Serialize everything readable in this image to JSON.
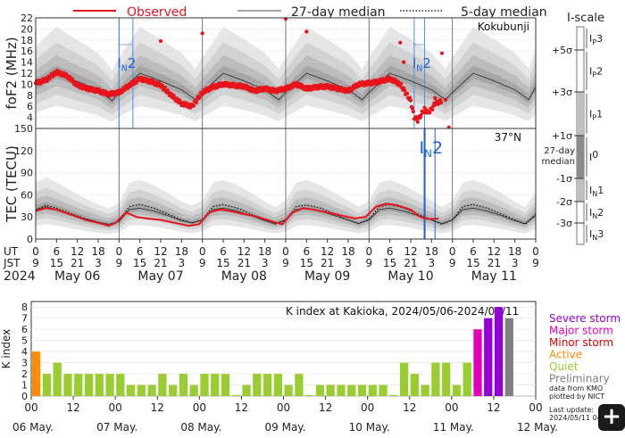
{
  "legend": {
    "observed": "Observed",
    "median27": "27-day median",
    "median5": "5-day median"
  },
  "iscale": {
    "title": "I-scale",
    "sigma_labels": [
      "+5σ",
      "+3σ",
      "+1σ",
      "-1σ",
      "-2σ",
      "-3σ"
    ],
    "median_label_1": "27-day",
    "median_label_2": "median",
    "bands": [
      {
        "main": "I",
        "sub": "P",
        "num": "3"
      },
      {
        "main": "I",
        "sub": "P",
        "num": "2"
      },
      {
        "main": "I",
        "sub": "P",
        "num": "1"
      },
      {
        "main": "I",
        "sub": "",
        "num": "0"
      },
      {
        "main": "I",
        "sub": "N",
        "num": "1"
      },
      {
        "main": "I",
        "sub": "N",
        "num": "2"
      },
      {
        "main": "I",
        "sub": "N",
        "num": "3"
      }
    ]
  },
  "expand_icon": "+",
  "colors": {
    "observed": "#e8141b",
    "median": "#333333",
    "event": "#1f5fd6",
    "severe": "#9400d3",
    "major": "#e600b4",
    "minor": "#e60000",
    "active": "#ff8c00",
    "quiet": "#9acd32",
    "preliminary": "#808080"
  },
  "chart_data": [
    {
      "type": "line",
      "name": "foF2",
      "ylabel": "foF2 (MHz)",
      "yticks": [
        4,
        6,
        8,
        10,
        12,
        14,
        16,
        18,
        20,
        22
      ],
      "ylim": [
        2,
        22
      ],
      "x_unit": "hours from 2024-05-06 00UT",
      "xlim": [
        0,
        144
      ],
      "station": "Kokubunji",
      "event_label": {
        "main": "I",
        "sub": "N",
        "num": "2"
      },
      "events": [
        {
          "x": 24,
          "x2": 28
        },
        {
          "x": 109,
          "x2": 112
        }
      ],
      "observed": [
        [
          0,
          10.2
        ],
        [
          3,
          10.8
        ],
        [
          6,
          12.2
        ],
        [
          9,
          11.5
        ],
        [
          12,
          9.8
        ],
        [
          15,
          9.2
        ],
        [
          18,
          8.8
        ],
        [
          21,
          8.2
        ],
        [
          24,
          8.5
        ],
        [
          27,
          9.8
        ],
        [
          30,
          11.0
        ],
        [
          33,
          10.5
        ],
        [
          36,
          9.8
        ],
        [
          39,
          8.0
        ],
        [
          42,
          6.5
        ],
        [
          45,
          6.0
        ],
        [
          48,
          8.5
        ],
        [
          51,
          9.5
        ],
        [
          54,
          10.0
        ],
        [
          57,
          9.8
        ],
        [
          60,
          9.6
        ],
        [
          63,
          8.8
        ],
        [
          66,
          9.2
        ],
        [
          69,
          8.8
        ],
        [
          72,
          9.2
        ],
        [
          75,
          10.0
        ],
        [
          78,
          9.2
        ],
        [
          81,
          9.5
        ],
        [
          84,
          9.6
        ],
        [
          87,
          9.2
        ],
        [
          90,
          8.8
        ],
        [
          93,
          10.0
        ],
        [
          96,
          10.2
        ],
        [
          99,
          10.5
        ],
        [
          102,
          11.0
        ],
        [
          105,
          10.0
        ],
        [
          108,
          7.0
        ],
        [
          109,
          4.0
        ],
        [
          110,
          3.5
        ],
        [
          111,
          4.5
        ],
        [
          112,
          5.5
        ],
        [
          113,
          4.8
        ],
        [
          114,
          5.5
        ],
        [
          115,
          6.5
        ],
        [
          117,
          7.0
        ]
      ],
      "observed_outliers": [
        [
          36,
          17.8
        ],
        [
          48,
          19.2
        ],
        [
          72,
          21.8
        ],
        [
          78,
          19.5
        ],
        [
          105,
          17.5
        ],
        [
          106,
          14.0
        ],
        [
          117,
          15.6
        ],
        [
          115,
          7.5
        ],
        [
          116,
          6.6
        ],
        [
          118,
          7.2
        ],
        [
          119,
          2.2
        ]
      ],
      "median27": [
        [
          0,
          9.8
        ],
        [
          6,
          12.0
        ],
        [
          12,
          10.5
        ],
        [
          18,
          9.0
        ],
        [
          22,
          7.0
        ],
        [
          24,
          8.5
        ],
        [
          30,
          12.0
        ],
        [
          36,
          10.6
        ],
        [
          42,
          9.0
        ],
        [
          46,
          7.2
        ],
        [
          48,
          8.5
        ],
        [
          54,
          12.0
        ],
        [
          60,
          10.6
        ],
        [
          66,
          9.0
        ],
        [
          70,
          7.2
        ],
        [
          72,
          8.5
        ],
        [
          78,
          12.0
        ],
        [
          84,
          10.6
        ],
        [
          90,
          9.0
        ],
        [
          94,
          7.2
        ],
        [
          96,
          8.5
        ],
        [
          102,
          12.0
        ],
        [
          108,
          10.6
        ],
        [
          114,
          9.0
        ],
        [
          118,
          7.2
        ],
        [
          120,
          8.5
        ],
        [
          126,
          12.0
        ],
        [
          132,
          10.6
        ],
        [
          138,
          9.0
        ],
        [
          142,
          7.2
        ],
        [
          144,
          9.5
        ]
      ]
    },
    {
      "type": "line",
      "name": "TEC",
      "ylabel": "TEC (TECU)",
      "yticks": [
        0,
        30,
        60,
        90,
        120,
        150
      ],
      "ylim": [
        0,
        150
      ],
      "xlim": [
        0,
        144
      ],
      "station": "37°N",
      "event_label": {
        "main": "I",
        "sub": "N",
        "num": "2"
      },
      "events": [
        {
          "x": 112
        },
        {
          "x": 115
        }
      ],
      "observed": [
        [
          0,
          38
        ],
        [
          3,
          42
        ],
        [
          6,
          40
        ],
        [
          9,
          35
        ],
        [
          12,
          30
        ],
        [
          15,
          25
        ],
        [
          18,
          22
        ],
        [
          21,
          18
        ],
        [
          23,
          22
        ],
        [
          26,
          36
        ],
        [
          29,
          30
        ],
        [
          32,
          28
        ],
        [
          36,
          26
        ],
        [
          40,
          22
        ],
        [
          44,
          18
        ],
        [
          47,
          20
        ],
        [
          50,
          36
        ],
        [
          53,
          40
        ],
        [
          56,
          38
        ],
        [
          60,
          34
        ],
        [
          64,
          30
        ],
        [
          68,
          24
        ],
        [
          71,
          20
        ],
        [
          74,
          36
        ],
        [
          77,
          42
        ],
        [
          80,
          40
        ],
        [
          84,
          36
        ],
        [
          88,
          32
        ],
        [
          92,
          28
        ],
        [
          95,
          30
        ],
        [
          98,
          44
        ],
        [
          101,
          48
        ],
        [
          104,
          46
        ],
        [
          108,
          40
        ],
        [
          110,
          32
        ],
        [
          112,
          28
        ],
        [
          114,
          27
        ],
        [
          116,
          28
        ]
      ],
      "median27": [
        [
          0,
          40
        ],
        [
          3,
          44
        ],
        [
          6,
          40
        ],
        [
          10,
          34
        ],
        [
          14,
          28
        ],
        [
          18,
          23
        ],
        [
          21,
          20
        ],
        [
          24,
          24
        ],
        [
          27,
          40
        ],
        [
          30,
          42
        ],
        [
          34,
          38
        ],
        [
          38,
          32
        ],
        [
          42,
          25
        ],
        [
          45,
          22
        ],
        [
          48,
          26
        ],
        [
          51,
          40
        ],
        [
          54,
          42
        ],
        [
          58,
          38
        ],
        [
          62,
          32
        ],
        [
          66,
          25
        ],
        [
          69,
          21
        ],
        [
          72,
          26
        ],
        [
          75,
          40
        ],
        [
          78,
          42
        ],
        [
          82,
          38
        ],
        [
          86,
          32
        ],
        [
          90,
          26
        ],
        [
          93,
          21
        ],
        [
          96,
          26
        ],
        [
          99,
          40
        ],
        [
          102,
          42
        ],
        [
          106,
          38
        ],
        [
          110,
          32
        ],
        [
          114,
          26
        ],
        [
          117,
          21
        ],
        [
          120,
          26
        ],
        [
          123,
          40
        ],
        [
          126,
          42
        ],
        [
          130,
          38
        ],
        [
          134,
          32
        ],
        [
          138,
          25
        ],
        [
          141,
          21
        ],
        [
          144,
          32
        ]
      ],
      "median5": [
        [
          0,
          40
        ],
        [
          3,
          46
        ],
        [
          6,
          42
        ],
        [
          10,
          35
        ],
        [
          14,
          28
        ],
        [
          18,
          22
        ],
        [
          21,
          19
        ],
        [
          24,
          24
        ],
        [
          27,
          44
        ],
        [
          30,
          47
        ],
        [
          34,
          42
        ],
        [
          38,
          34
        ],
        [
          42,
          26
        ],
        [
          45,
          22
        ],
        [
          48,
          26
        ],
        [
          51,
          44
        ],
        [
          54,
          47
        ],
        [
          58,
          42
        ],
        [
          62,
          34
        ],
        [
          66,
          26
        ],
        [
          69,
          20
        ],
        [
          72,
          26
        ],
        [
          75,
          44
        ],
        [
          78,
          46
        ],
        [
          82,
          42
        ],
        [
          86,
          34
        ],
        [
          90,
          26
        ],
        [
          93,
          21
        ],
        [
          96,
          27
        ],
        [
          99,
          44
        ],
        [
          102,
          47
        ],
        [
          106,
          42
        ],
        [
          110,
          34
        ],
        [
          114,
          26
        ],
        [
          117,
          20
        ],
        [
          120,
          26
        ],
        [
          123,
          44
        ],
        [
          126,
          47
        ],
        [
          130,
          42
        ],
        [
          134,
          34
        ],
        [
          138,
          26
        ],
        [
          141,
          20
        ],
        [
          144,
          34
        ]
      ]
    },
    {
      "type": "bar",
      "name": "K index",
      "title": "K index at Kakioka, 2024/05/06-2024/05/11",
      "ylabel": "K index",
      "yticks": [
        0,
        1,
        2,
        3,
        4,
        5,
        6,
        7,
        8
      ],
      "ylim": [
        0,
        8.5
      ],
      "bar_hours": 3,
      "values": [
        4,
        2,
        3,
        2,
        2,
        2,
        2,
        2,
        2,
        1,
        1,
        1,
        2,
        1,
        2,
        1,
        2,
        2,
        2,
        0,
        1,
        2,
        2,
        2,
        1,
        2,
        0,
        1,
        1,
        1,
        1,
        1,
        1,
        1,
        0,
        3,
        2,
        1,
        3,
        3,
        1,
        3,
        6,
        7,
        8,
        7
      ],
      "levels": [
        "active",
        "quiet",
        "quiet",
        "quiet",
        "quiet",
        "quiet",
        "quiet",
        "quiet",
        "quiet",
        "quiet",
        "quiet",
        "quiet",
        "quiet",
        "quiet",
        "quiet",
        "quiet",
        "quiet",
        "quiet",
        "quiet",
        "quiet",
        "quiet",
        "quiet",
        "quiet",
        "quiet",
        "quiet",
        "quiet",
        "quiet",
        "quiet",
        "quiet",
        "quiet",
        "quiet",
        "quiet",
        "quiet",
        "quiet",
        "quiet",
        "quiet",
        "quiet",
        "quiet",
        "quiet",
        "quiet",
        "quiet",
        "quiet",
        "major",
        "severe",
        "severe",
        "preliminary"
      ],
      "legend": [
        "Severe storm",
        "Major storm",
        "Minor storm",
        "Active",
        "Quiet",
        "Preliminary"
      ],
      "credit": [
        "data from KMO",
        "plotted by NICT"
      ],
      "last_update": [
        "Last update:",
        "2024/05/11 04"
      ],
      "xtick_labels": [
        "00",
        "12",
        "00",
        "12",
        "00",
        "12",
        "00",
        "12",
        "00",
        "12",
        "00",
        "12",
        "00"
      ],
      "date_labels": [
        "06 May.",
        "07 May.",
        "08 May.",
        "09 May.",
        "10 May.",
        "11 May.",
        "12 May."
      ]
    }
  ],
  "time_axis": {
    "ut_label": "UT",
    "jst_label": "JST",
    "year_label": "2024",
    "ut_ticks": [
      "0",
      "6",
      "12",
      "18",
      "0",
      "6",
      "12",
      "18",
      "0",
      "6",
      "12",
      "18",
      "0",
      "6",
      "12",
      "18",
      "0",
      "6",
      "12",
      "18",
      "0",
      "6",
      "12",
      "18",
      "0"
    ],
    "jst_ticks": [
      "9",
      "15",
      "21",
      "3",
      "9",
      "15",
      "21",
      "3",
      "9",
      "15",
      "21",
      "3",
      "9",
      "15",
      "21",
      "3",
      "9",
      "15",
      "21",
      "3",
      "9",
      "15",
      "21",
      "3",
      "9"
    ],
    "day_labels": [
      "May 06",
      "May 07",
      "May 08",
      "May 09",
      "May 10",
      "May 11"
    ]
  }
}
